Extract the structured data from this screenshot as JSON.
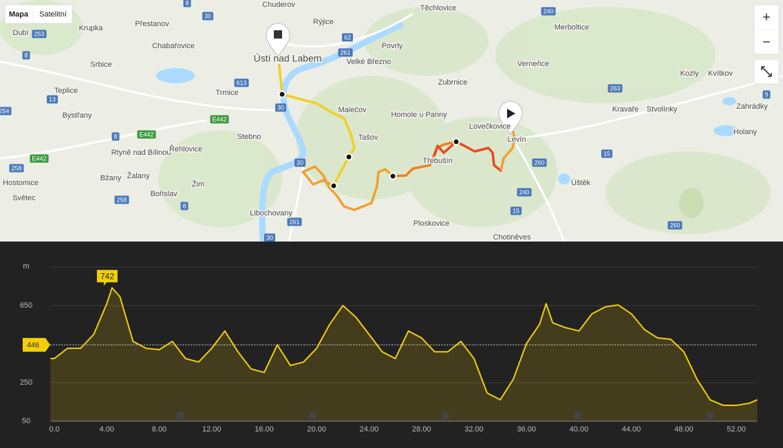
{
  "map": {
    "map_type_buttons": [
      "Mapa",
      "Satelitní"
    ],
    "zoom_buttons": [
      "+",
      "−"
    ],
    "places": [
      "Chuderov",
      "Rýjice",
      "Těchlovice",
      "Krupka",
      "Přestanov",
      "Dubí",
      "Chabařovice",
      "Ústí nad Labem",
      "Srbice",
      "Teplice",
      "Trmice",
      "Velké Březno",
      "Povrly",
      "Zubrnice",
      "Merboltice",
      "Verneřice",
      "Malečov",
      "Homole u Panny",
      "Lovečkovice",
      "Levín",
      "Bystřany",
      "Tašov",
      "Stebno",
      "Třebušín",
      "Rtyně nad Bílinou",
      "Řehlovice",
      "Hostomice",
      "Bžany",
      "Žalany",
      "Žim",
      "Světec",
      "Bořislav",
      "Libochovany",
      "Ploskovice",
      "Chotiněves",
      "Úštěk",
      "Kravaře",
      "Stvolínky",
      "Kozly",
      "Kvítkov",
      "Zahrádky",
      "Holany"
    ],
    "roads": [
      "253",
      "8",
      "13",
      "254",
      "30",
      "613",
      "261",
      "62",
      "240",
      "263",
      "15",
      "260",
      "9",
      "E442",
      "E442",
      "8",
      "E442",
      "258",
      "258",
      "8",
      "240",
      "15",
      "261",
      "30",
      "260",
      "30",
      "8",
      "30"
    ]
  },
  "chart_data": {
    "type": "area",
    "y_unit": "m",
    "x": [
      -0.3,
      0,
      1,
      2,
      3,
      4,
      4.4,
      5,
      6,
      7,
      8,
      9,
      10,
      11,
      12,
      13,
      14,
      15,
      16,
      17,
      18,
      19,
      20,
      21,
      22,
      23,
      24,
      25,
      26,
      27,
      28,
      29,
      30,
      31,
      32,
      33,
      34,
      35,
      36,
      37,
      37.5,
      38,
      39,
      40,
      41,
      42,
      43,
      44,
      45,
      46,
      47,
      48,
      49,
      50,
      51,
      52,
      53,
      53.6
    ],
    "values": [
      375,
      375,
      428,
      428,
      500,
      660,
      742,
      696,
      464,
      428,
      421,
      464,
      375,
      357,
      428,
      518,
      410,
      321,
      303,
      446,
      339,
      357,
      428,
      553,
      650,
      589,
      500,
      410,
      375,
      518,
      482,
      410,
      410,
      464,
      375,
      196,
      161,
      268,
      453,
      553,
      660,
      560,
      535,
      518,
      607,
      643,
      653,
      607,
      525,
      482,
      475,
      410,
      268,
      161,
      132,
      132,
      143,
      161
    ],
    "color": "#f2cf0a",
    "xlim": [
      -0.3,
      53.6
    ],
    "ylim": [
      50,
      850
    ],
    "xticks": [
      {
        "value": 0,
        "label": "0.0"
      },
      {
        "value": 4,
        "label": "4.00"
      },
      {
        "value": 8,
        "label": "8.00"
      },
      {
        "value": 12,
        "label": "12.00"
      },
      {
        "value": 16,
        "label": "16.00"
      },
      {
        "value": 20,
        "label": "20.00"
      },
      {
        "value": 24,
        "label": "24.00"
      },
      {
        "value": 28,
        "label": "28.00"
      },
      {
        "value": 32,
        "label": "32.00"
      },
      {
        "value": 36,
        "label": "36.00"
      },
      {
        "value": 40,
        "label": "40.00"
      },
      {
        "value": 44,
        "label": "44.00"
      },
      {
        "value": 48,
        "label": "48.00"
      },
      {
        "value": 52,
        "label": "52.00"
      }
    ],
    "yticks": [
      50,
      250,
      650
    ],
    "grid": true,
    "max_marker": {
      "x": 4.4,
      "value": 742
    },
    "reference_line": {
      "value": 446
    }
  }
}
